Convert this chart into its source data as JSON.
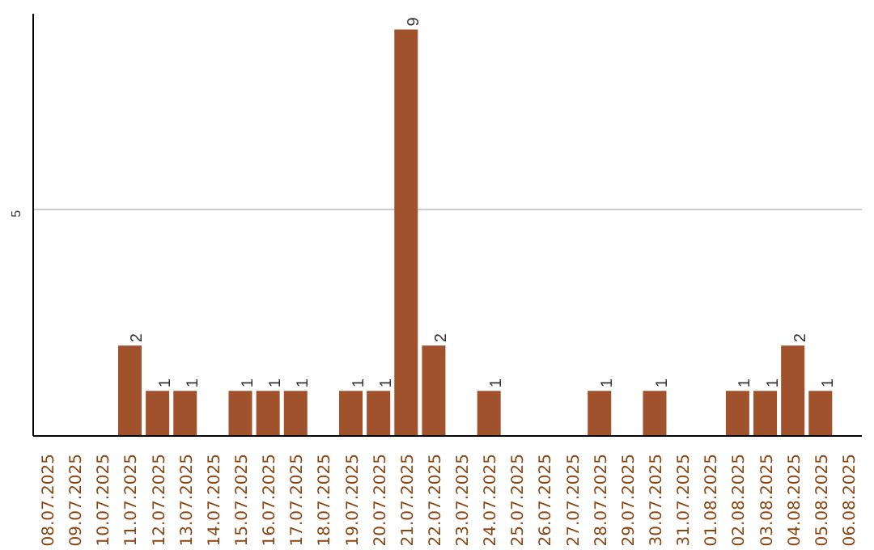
{
  "chart_data": {
    "type": "bar",
    "categories": [
      "08.07.2025",
      "09.07.2025",
      "10.07.2025",
      "11.07.2025",
      "12.07.2025",
      "13.07.2025",
      "14.07.2025",
      "15.07.2025",
      "16.07.2025",
      "17.07.2025",
      "18.07.2025",
      "19.07.2025",
      "20.07.2025",
      "21.07.2025",
      "22.07.2025",
      "23.07.2025",
      "24.07.2025",
      "25.07.2025",
      "26.07.2025",
      "27.07.2025",
      "28.07.2025",
      "29.07.2025",
      "30.07.2025",
      "31.07.2025",
      "01.08.2025",
      "02.08.2025",
      "03.08.2025",
      "04.08.2025",
      "05.08.2025",
      "06.08.2025"
    ],
    "values": [
      0,
      0,
      0,
      2,
      1,
      1,
      0,
      1,
      1,
      1,
      0,
      1,
      1,
      9,
      2,
      0,
      1,
      0,
      0,
      0,
      1,
      0,
      1,
      0,
      0,
      1,
      1,
      2,
      1,
      0
    ],
    "value_labels": [
      null,
      null,
      null,
      "2",
      "1",
      "1",
      null,
      "1",
      "1",
      "1",
      null,
      "1",
      "1",
      "9",
      "2",
      null,
      "1",
      null,
      null,
      null,
      "1",
      null,
      "1",
      null,
      null,
      "1",
      "1",
      "2",
      "1",
      null
    ],
    "color": "#a0522d",
    "ylim": [
      0,
      9.35
    ],
    "yticks": [
      5
    ],
    "grid": "y"
  }
}
